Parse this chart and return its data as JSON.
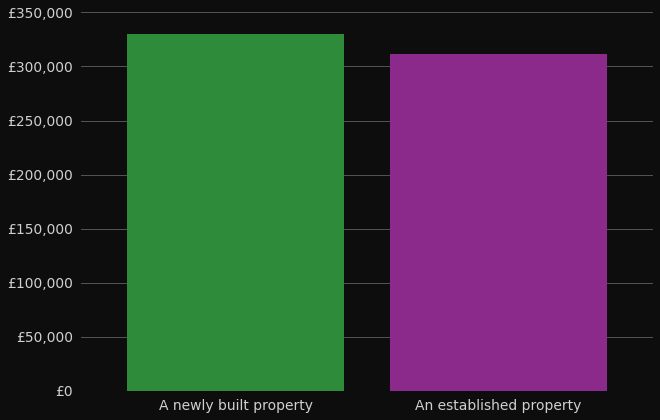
{
  "categories": [
    "A newly built property",
    "An established property"
  ],
  "values": [
    330000,
    312000
  ],
  "bar_colors": [
    "#2e8b3a",
    "#8b2a8b"
  ],
  "background_color": "#0d0d0d",
  "text_color": "#d0d0d0",
  "grid_color": "#555555",
  "ylim": [
    0,
    350000
  ],
  "ytick_step": 50000,
  "bar_width": 0.38,
  "x_positions": [
    0.27,
    0.73
  ],
  "xlim": [
    0.0,
    1.0
  ],
  "ylabel_fontsize": 10,
  "xlabel_fontsize": 10
}
